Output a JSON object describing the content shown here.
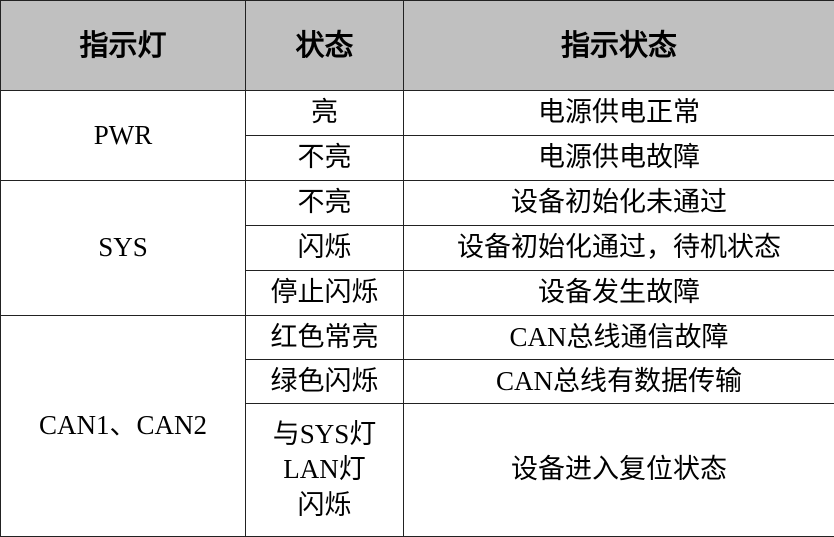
{
  "header": [
    "指示灯",
    "状态",
    "指示状态"
  ],
  "groups": [
    {
      "indicator": "PWR",
      "rows": [
        {
          "status": "亮",
          "meaning": "电源供电正常"
        },
        {
          "status": "不亮",
          "meaning": "电源供电故障"
        }
      ]
    },
    {
      "indicator": "SYS",
      "rows": [
        {
          "status": "不亮",
          "meaning": "设备初始化未通过"
        },
        {
          "status": "闪烁",
          "meaning": "设备初始化通过，待机状态"
        },
        {
          "status": "停止闪烁",
          "meaning": "设备发生故障"
        }
      ]
    },
    {
      "indicator": "CAN1、CAN2",
      "rows": [
        {
          "status": "红色常亮",
          "meaning": "CAN总线通信故障"
        },
        {
          "status": "绿色闪烁",
          "meaning": "CAN总线有数据传输"
        },
        {
          "status_lines": [
            "与SYS灯",
            "LAN灯",
            "闪烁"
          ],
          "meaning": "设备进入复位状态"
        }
      ]
    }
  ]
}
